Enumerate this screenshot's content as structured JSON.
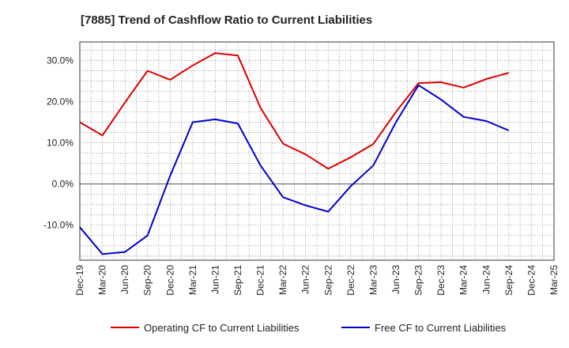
{
  "chart_data": {
    "type": "line",
    "title": "[7885]  Trend of Cashflow Ratio to Current Liabilities",
    "xlabel": "",
    "ylabel": "",
    "categories": [
      "Dec-19",
      "Mar-20",
      "Jun-20",
      "Sep-20",
      "Dec-20",
      "Mar-21",
      "Jun-21",
      "Sep-21",
      "Dec-21",
      "Mar-22",
      "Jun-22",
      "Sep-22",
      "Dec-22",
      "Mar-23",
      "Jun-23",
      "Sep-23",
      "Dec-23",
      "Mar-24",
      "Jun-24",
      "Sep-24",
      "Dec-24",
      "Mar-25"
    ],
    "ylim": [
      -18.5,
      34.5
    ],
    "yticks": [
      30,
      20,
      10,
      0,
      -10
    ],
    "ytick_labels": [
      "30.0%",
      "20.0%",
      "10.0%",
      "0.0%",
      "-10.0%"
    ],
    "grid": true,
    "legend_position": "bottom",
    "series": [
      {
        "name": "Operating CF to Current Liabilities",
        "color": "#dd0000",
        "values": [
          15.0,
          11.8,
          19.8,
          27.5,
          25.3,
          28.8,
          31.8,
          31.2,
          18.5,
          9.8,
          7.2,
          3.7,
          6.5,
          9.7,
          17.5,
          24.5,
          24.7,
          23.4,
          25.5,
          27.0,
          null,
          null
        ]
      },
      {
        "name": "Free CF to Current Liabilities",
        "color": "#0000cc",
        "values": [
          -10.5,
          -17.0,
          -16.5,
          -12.5,
          2.0,
          15.0,
          15.7,
          14.7,
          4.5,
          -3.2,
          -5.2,
          -6.7,
          -0.5,
          4.5,
          15.0,
          24.0,
          20.5,
          16.3,
          15.3,
          13.0,
          null,
          null
        ]
      }
    ]
  }
}
